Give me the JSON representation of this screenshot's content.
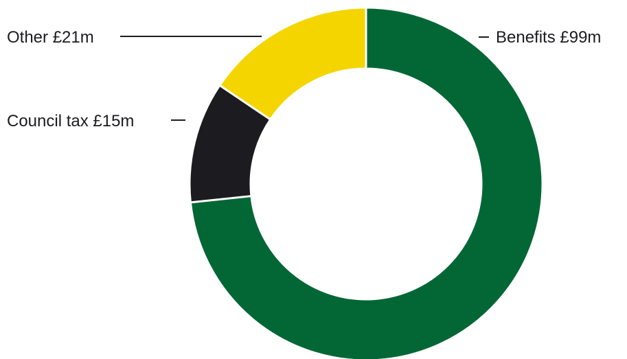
{
  "chart_data": {
    "type": "pie",
    "variant": "donut",
    "categories": [
      "Benefits",
      "Council tax",
      "Other"
    ],
    "values": [
      99,
      15,
      21
    ],
    "unit": "£m",
    "labels": [
      "Benefits £99m",
      "Council tax £15m",
      "Other £21m"
    ],
    "colors": [
      "#036735",
      "#1c1b1f",
      "#f4d500"
    ],
    "slice_order": "clockwise from top: Benefits, Council tax, Other",
    "legend": "none"
  }
}
